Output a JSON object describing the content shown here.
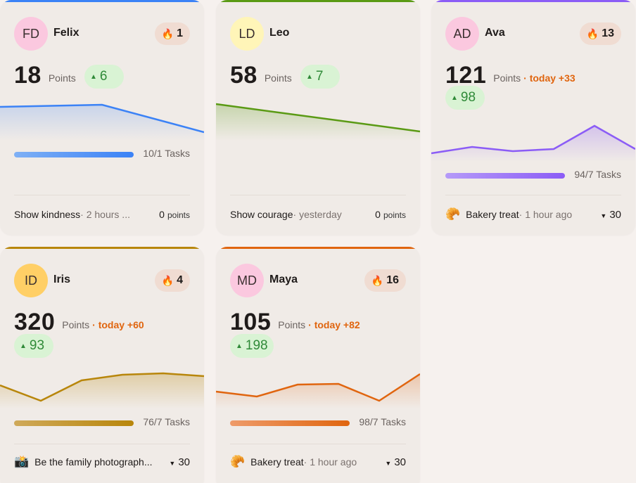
{
  "cards": [
    {
      "initials": "FD",
      "name": "Felix",
      "streak": "1",
      "points": "18",
      "points_label": "Points",
      "today": "",
      "delta": "6",
      "tasks": "10/1 Tasks",
      "activity": {
        "emoji": "",
        "title": "Show kindness",
        "when": " · 2 hours ...",
        "value": "0",
        "unit": "points"
      },
      "accent": "#3b82f6",
      "avatar_bg": "#fbc8df",
      "progress": 1.0
    },
    {
      "initials": "LD",
      "name": "Leo",
      "streak": "",
      "points": "58",
      "points_label": "Points",
      "today": "",
      "delta": "7",
      "tasks": "",
      "activity": {
        "emoji": "",
        "title": "Show courage",
        "when": " · yesterday",
        "value": "0",
        "unit": "points"
      },
      "accent": "#5a9a14",
      "avatar_bg": "#fff5b8",
      "progress": 0
    },
    {
      "initials": "AD",
      "name": "Ava",
      "streak": "13",
      "points": "121",
      "points_label": "Points",
      "today": "· today +33",
      "delta": "98",
      "tasks": "94/7 Tasks",
      "activity": {
        "emoji": "🥐",
        "title": "Bakery treat",
        "when": " · 1 hour ago",
        "value": "30",
        "unit": ""
      },
      "accent": "#8b5cf6",
      "avatar_bg": "#fbc8df",
      "progress": 1.0
    },
    {
      "initials": "ID",
      "name": "Iris",
      "streak": "4",
      "points": "320",
      "points_label": "Points",
      "today": "· today +60",
      "delta": "93",
      "tasks": "76/7 Tasks",
      "activity": {
        "emoji": "📸",
        "title": "Be the family photograph...",
        "when": "",
        "value": "30",
        "unit": ""
      },
      "accent": "#b8860b",
      "avatar_bg": "#ffcf66",
      "progress": 1.0
    },
    {
      "initials": "MD",
      "name": "Maya",
      "streak": "16",
      "points": "105",
      "points_label": "Points",
      "today": "· today +82",
      "delta": "198",
      "tasks": "98/7 Tasks",
      "activity": {
        "emoji": "🥐",
        "title": "Bakery treat",
        "when": " · 1 hour ago",
        "value": "30",
        "unit": ""
      },
      "accent": "#e0650f",
      "avatar_bg": "#fbc8df",
      "progress": 1.0
    }
  ]
}
